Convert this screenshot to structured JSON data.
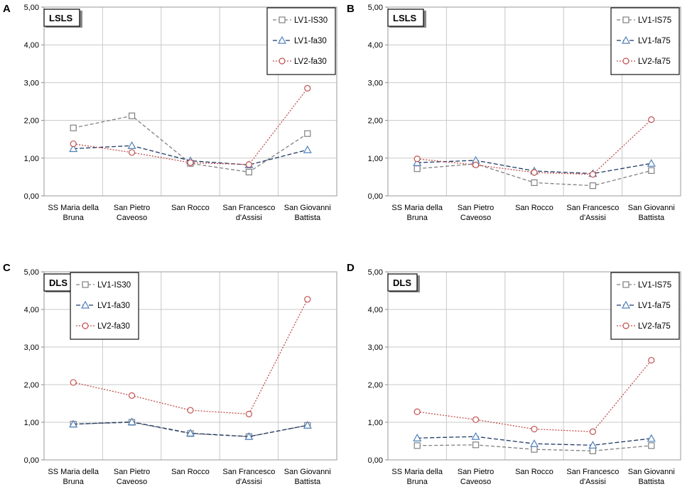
{
  "figure": {
    "y_tick_labels": [
      "0,00",
      "1,00",
      "2,00",
      "3,00",
      "4,00",
      "5,00"
    ],
    "categories": [
      [
        "SS Maria della",
        "Bruna"
      ],
      [
        "San Pietro",
        "Caveoso"
      ],
      [
        "San Rocco"
      ],
      [
        "San Francesco",
        "d'Assisi"
      ],
      [
        "San Giovanni",
        "Battista"
      ]
    ]
  },
  "colors": {
    "lv1_is": "#808080",
    "lv1_fa": "#1f3864",
    "lv1_fa_marker": "#4f81bd",
    "lv2_fa": "#c0504d",
    "lv2_fa_marker": "#c0504d",
    "grid": "#c8c8c8"
  },
  "chart_data": [
    {
      "type": "line",
      "panel_letter": "A",
      "title": "LSLS",
      "legend_position": "top-right",
      "ylim": [
        0,
        5
      ],
      "categories": [
        "SS Maria della Bruna",
        "San Pietro Caveoso",
        "San Rocco",
        "San Francesco d'Assisi",
        "San Giovanni Battista"
      ],
      "series": [
        {
          "name": "LV1-IS30",
          "marker": "square",
          "values": [
            1.8,
            2.12,
            0.86,
            0.63,
            1.65
          ]
        },
        {
          "name": "LV1-fa30",
          "marker": "triangle",
          "values": [
            1.25,
            1.33,
            0.93,
            0.82,
            1.22
          ]
        },
        {
          "name": "LV2-fa30",
          "marker": "circle",
          "values": [
            1.38,
            1.15,
            0.88,
            0.83,
            2.85
          ]
        }
      ]
    },
    {
      "type": "line",
      "panel_letter": "B",
      "title": "LSLS",
      "legend_position": "top-right",
      "ylim": [
        0,
        5
      ],
      "categories": [
        "SS Maria della Bruna",
        "San Pietro Caveoso",
        "San Rocco",
        "San Francesco d'Assisi",
        "San Giovanni Battista"
      ],
      "series": [
        {
          "name": "LV1-IS75",
          "marker": "square",
          "values": [
            0.72,
            0.85,
            0.35,
            0.27,
            0.67
          ]
        },
        {
          "name": "LV1-fa75",
          "marker": "triangle",
          "values": [
            0.88,
            0.94,
            0.66,
            0.59,
            0.86
          ]
        },
        {
          "name": "LV2-fa75",
          "marker": "circle",
          "values": [
            0.98,
            0.82,
            0.62,
            0.57,
            2.02
          ]
        }
      ]
    },
    {
      "type": "line",
      "panel_letter": "C",
      "title": "DLS",
      "legend_position": "top-left",
      "ylim": [
        0,
        5
      ],
      "categories": [
        "SS Maria della Bruna",
        "San Pietro Caveoso",
        "San Rocco",
        "San Francesco d'Assisi",
        "San Giovanni Battista"
      ],
      "series": [
        {
          "name": "LV1-IS30",
          "marker": "square",
          "values": [
            0.95,
            1.0,
            0.7,
            0.62,
            0.92
          ]
        },
        {
          "name": "LV1-fa30",
          "marker": "triangle",
          "values": [
            0.95,
            1.01,
            0.71,
            0.62,
            0.92
          ]
        },
        {
          "name": "LV2-fa30",
          "marker": "circle",
          "values": [
            2.06,
            1.71,
            1.32,
            1.22,
            4.27
          ]
        }
      ]
    },
    {
      "type": "line",
      "panel_letter": "D",
      "title": "DLS",
      "legend_position": "top-right",
      "ylim": [
        0,
        5
      ],
      "categories": [
        "SS Maria della Bruna",
        "San Pietro Caveoso",
        "San Rocco",
        "San Francesco d'Assisi",
        "San Giovanni Battista"
      ],
      "series": [
        {
          "name": "LV1-IS75",
          "marker": "square",
          "values": [
            0.38,
            0.4,
            0.28,
            0.24,
            0.38
          ]
        },
        {
          "name": "LV1-fa75",
          "marker": "triangle",
          "values": [
            0.58,
            0.62,
            0.43,
            0.39,
            0.57
          ]
        },
        {
          "name": "LV2-fa75",
          "marker": "circle",
          "values": [
            1.28,
            1.07,
            0.82,
            0.75,
            2.65
          ]
        }
      ]
    }
  ]
}
